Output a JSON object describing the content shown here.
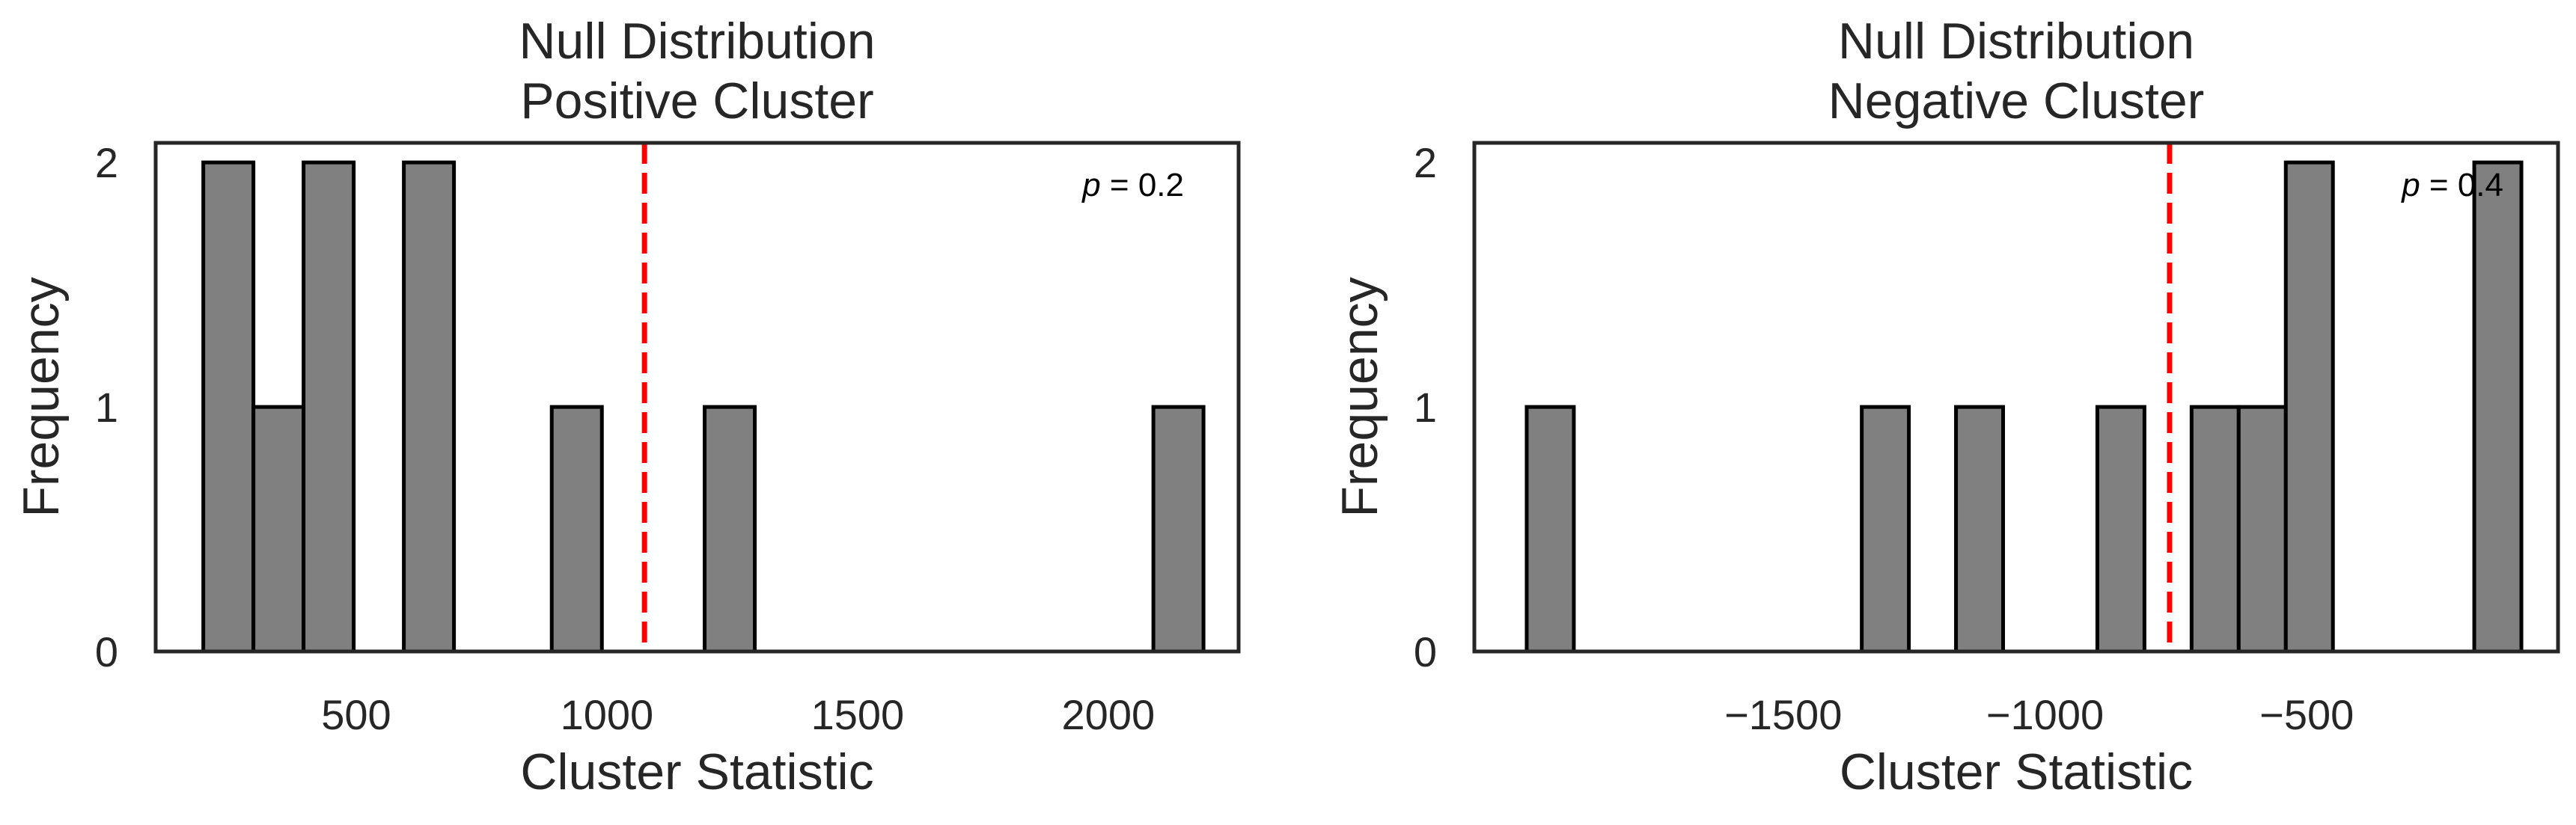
{
  "chart_data": [
    {
      "type": "bar",
      "title_lines": [
        "Null Distribution",
        "Positive Cluster"
      ],
      "xlabel": "Cluster Statistic",
      "ylabel": "Frequency",
      "xlim": [
        100,
        2260
      ],
      "ylim": [
        0,
        2.08
      ],
      "xticks": [
        500,
        1000,
        1500,
        2000
      ],
      "xtick_labels": [
        "500",
        "1000",
        "1500",
        "2000"
      ],
      "yticks": [
        0,
        1,
        2
      ],
      "ytick_labels": [
        "0",
        "1",
        "2"
      ],
      "bin_width": 100,
      "bars": [
        {
          "x0": 195,
          "x1": 295,
          "count": 2
        },
        {
          "x0": 295,
          "x1": 395,
          "count": 1
        },
        {
          "x0": 395,
          "x1": 495,
          "count": 2
        },
        {
          "x0": 595,
          "x1": 695,
          "count": 2
        },
        {
          "x0": 890,
          "x1": 990,
          "count": 1
        },
        {
          "x0": 1195,
          "x1": 1295,
          "count": 1
        },
        {
          "x0": 2090,
          "x1": 2190,
          "count": 1
        }
      ],
      "observed_line": {
        "x": 1075,
        "color": "#ff0000",
        "style": "dashed"
      },
      "annotation": {
        "p_symbol": "p",
        "text": " = 0.2",
        "placement": "top-right"
      },
      "grid": false,
      "bar_color": "#808080"
    },
    {
      "type": "bar",
      "title_lines": [
        "Null Distribution",
        "Negative Cluster"
      ],
      "xlabel": "Cluster Statistic",
      "ylabel": "Frequency",
      "xlim": [
        -2090,
        -20
      ],
      "ylim": [
        0,
        2.08
      ],
      "xticks": [
        -1500,
        -1000,
        -500
      ],
      "xtick_labels": [
        "−1500",
        "−1000",
        "−500"
      ],
      "yticks": [
        0,
        1,
        2
      ],
      "ytick_labels": [
        "0",
        "1",
        "2"
      ],
      "bin_width": 90,
      "bars": [
        {
          "x0": -1990,
          "x1": -1900,
          "count": 1
        },
        {
          "x0": -1350,
          "x1": -1260,
          "count": 1
        },
        {
          "x0": -1170,
          "x1": -1080,
          "count": 1
        },
        {
          "x0": -900,
          "x1": -810,
          "count": 1
        },
        {
          "x0": -720,
          "x1": -630,
          "count": 1
        },
        {
          "x0": -630,
          "x1": -540,
          "count": 1
        },
        {
          "x0": -540,
          "x1": -450,
          "count": 2
        },
        {
          "x0": -180,
          "x1": -90,
          "count": 2
        }
      ],
      "observed_line": {
        "x": -762,
        "color": "#ff0000",
        "style": "dashed"
      },
      "annotation": {
        "p_symbol": "p",
        "text": " = 0.4",
        "placement": "top-right"
      },
      "grid": false,
      "bar_color": "#808080"
    }
  ]
}
